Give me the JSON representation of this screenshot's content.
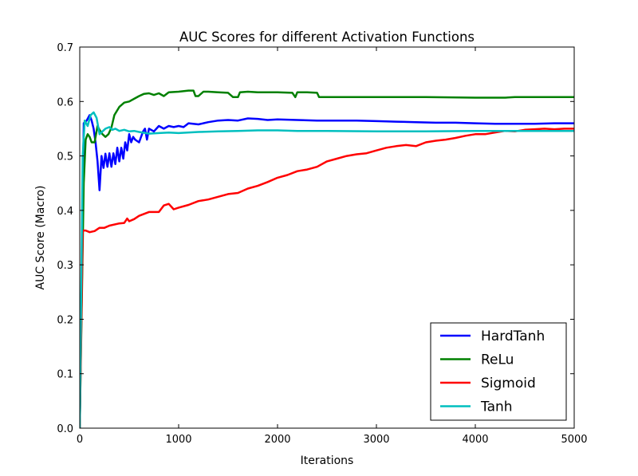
{
  "chart_data": {
    "type": "line",
    "title": "AUC Scores for different Activation Functions",
    "xlabel": "Iterations",
    "ylabel": "AUC Score (Macro)",
    "xlim": [
      0,
      5000
    ],
    "ylim": [
      0,
      0.7
    ],
    "xticks": [
      0,
      1000,
      2000,
      3000,
      4000,
      5000
    ],
    "xtick_labels": [
      "0",
      "1000",
      "2000",
      "3000",
      "4000",
      "5000"
    ],
    "yticks": [
      0,
      0.1,
      0.2,
      0.3,
      0.4,
      0.5,
      0.6,
      0.7
    ],
    "ytick_labels": [
      "0.0",
      "0.1",
      "0.2",
      "0.3",
      "0.4",
      "0.5",
      "0.6",
      "0.7"
    ],
    "grid": false,
    "legend": "lower-right",
    "series": [
      {
        "name": "HardTanh",
        "color": "#0000ff",
        "points": [
          [
            0,
            0
          ],
          [
            40,
            0.56
          ],
          [
            70,
            0.565
          ],
          [
            100,
            0.575
          ],
          [
            120,
            0.565
          ],
          [
            140,
            0.55
          ],
          [
            160,
            0.525
          ],
          [
            180,
            0.49
          ],
          [
            200,
            0.437
          ],
          [
            220,
            0.5
          ],
          [
            240,
            0.478
          ],
          [
            260,
            0.504
          ],
          [
            280,
            0.48
          ],
          [
            300,
            0.505
          ],
          [
            320,
            0.48
          ],
          [
            340,
            0.505
          ],
          [
            360,
            0.485
          ],
          [
            380,
            0.515
          ],
          [
            400,
            0.49
          ],
          [
            420,
            0.515
          ],
          [
            440,
            0.495
          ],
          [
            460,
            0.525
          ],
          [
            480,
            0.51
          ],
          [
            500,
            0.54
          ],
          [
            520,
            0.525
          ],
          [
            540,
            0.535
          ],
          [
            560,
            0.53
          ],
          [
            600,
            0.525
          ],
          [
            640,
            0.545
          ],
          [
            660,
            0.55
          ],
          [
            680,
            0.53
          ],
          [
            700,
            0.55
          ],
          [
            750,
            0.545
          ],
          [
            800,
            0.555
          ],
          [
            850,
            0.55
          ],
          [
            900,
            0.555
          ],
          [
            950,
            0.553
          ],
          [
            1000,
            0.555
          ],
          [
            1050,
            0.553
          ],
          [
            1100,
            0.56
          ],
          [
            1200,
            0.558
          ],
          [
            1300,
            0.562
          ],
          [
            1400,
            0.565
          ],
          [
            1500,
            0.566
          ],
          [
            1600,
            0.565
          ],
          [
            1700,
            0.569
          ],
          [
            1800,
            0.568
          ],
          [
            1900,
            0.566
          ],
          [
            2000,
            0.567
          ],
          [
            2200,
            0.566
          ],
          [
            2400,
            0.565
          ],
          [
            2600,
            0.565
          ],
          [
            2800,
            0.565
          ],
          [
            3000,
            0.564
          ],
          [
            3200,
            0.563
          ],
          [
            3400,
            0.562
          ],
          [
            3600,
            0.561
          ],
          [
            3800,
            0.561
          ],
          [
            4000,
            0.56
          ],
          [
            4200,
            0.559
          ],
          [
            4400,
            0.559
          ],
          [
            4600,
            0.559
          ],
          [
            4800,
            0.56
          ],
          [
            5000,
            0.56
          ]
        ]
      },
      {
        "name": "ReLu",
        "color": "#008000",
        "points": [
          [
            0,
            0
          ],
          [
            40,
            0.45
          ],
          [
            60,
            0.53
          ],
          [
            80,
            0.54
          ],
          [
            100,
            0.535
          ],
          [
            120,
            0.525
          ],
          [
            150,
            0.525
          ],
          [
            180,
            0.555
          ],
          [
            200,
            0.548
          ],
          [
            230,
            0.54
          ],
          [
            260,
            0.535
          ],
          [
            290,
            0.54
          ],
          [
            320,
            0.552
          ],
          [
            350,
            0.575
          ],
          [
            400,
            0.59
          ],
          [
            450,
            0.598
          ],
          [
            500,
            0.6
          ],
          [
            550,
            0.605
          ],
          [
            600,
            0.61
          ],
          [
            650,
            0.614
          ],
          [
            700,
            0.615
          ],
          [
            750,
            0.612
          ],
          [
            800,
            0.615
          ],
          [
            850,
            0.61
          ],
          [
            900,
            0.617
          ],
          [
            1000,
            0.618
          ],
          [
            1100,
            0.62
          ],
          [
            1150,
            0.62
          ],
          [
            1170,
            0.61
          ],
          [
            1200,
            0.61
          ],
          [
            1250,
            0.618
          ],
          [
            1300,
            0.618
          ],
          [
            1400,
            0.617
          ],
          [
            1500,
            0.616
          ],
          [
            1550,
            0.608
          ],
          [
            1600,
            0.608
          ],
          [
            1620,
            0.617
          ],
          [
            1700,
            0.618
          ],
          [
            1800,
            0.617
          ],
          [
            2000,
            0.617
          ],
          [
            2150,
            0.616
          ],
          [
            2180,
            0.608
          ],
          [
            2200,
            0.617
          ],
          [
            2300,
            0.617
          ],
          [
            2400,
            0.616
          ],
          [
            2420,
            0.608
          ],
          [
            2600,
            0.608
          ],
          [
            3000,
            0.608
          ],
          [
            3500,
            0.608
          ],
          [
            4000,
            0.607
          ],
          [
            4300,
            0.607
          ],
          [
            4400,
            0.608
          ],
          [
            4500,
            0.608
          ],
          [
            5000,
            0.608
          ]
        ]
      },
      {
        "name": "Sigmoid",
        "color": "#ff0000",
        "points": [
          [
            0,
            0
          ],
          [
            30,
            0.363
          ],
          [
            60,
            0.363
          ],
          [
            100,
            0.36
          ],
          [
            150,
            0.362
          ],
          [
            200,
            0.368
          ],
          [
            250,
            0.368
          ],
          [
            300,
            0.372
          ],
          [
            400,
            0.376
          ],
          [
            450,
            0.377
          ],
          [
            480,
            0.385
          ],
          [
            500,
            0.38
          ],
          [
            550,
            0.384
          ],
          [
            600,
            0.39
          ],
          [
            700,
            0.397
          ],
          [
            800,
            0.397
          ],
          [
            850,
            0.409
          ],
          [
            900,
            0.412
          ],
          [
            950,
            0.402
          ],
          [
            1000,
            0.405
          ],
          [
            1100,
            0.41
          ],
          [
            1200,
            0.417
          ],
          [
            1300,
            0.42
          ],
          [
            1400,
            0.425
          ],
          [
            1500,
            0.43
          ],
          [
            1600,
            0.432
          ],
          [
            1700,
            0.44
          ],
          [
            1800,
            0.445
          ],
          [
            1900,
            0.452
          ],
          [
            2000,
            0.46
          ],
          [
            2100,
            0.465
          ],
          [
            2200,
            0.472
          ],
          [
            2300,
            0.475
          ],
          [
            2400,
            0.48
          ],
          [
            2500,
            0.49
          ],
          [
            2600,
            0.495
          ],
          [
            2700,
            0.5
          ],
          [
            2800,
            0.503
          ],
          [
            2900,
            0.505
          ],
          [
            3000,
            0.51
          ],
          [
            3100,
            0.515
          ],
          [
            3200,
            0.518
          ],
          [
            3300,
            0.52
          ],
          [
            3400,
            0.518
          ],
          [
            3500,
            0.525
          ],
          [
            3600,
            0.528
          ],
          [
            3700,
            0.53
          ],
          [
            3800,
            0.533
          ],
          [
            3900,
            0.537
          ],
          [
            4000,
            0.54
          ],
          [
            4100,
            0.54
          ],
          [
            4200,
            0.543
          ],
          [
            4300,
            0.546
          ],
          [
            4400,
            0.545
          ],
          [
            4500,
            0.548
          ],
          [
            4600,
            0.549
          ],
          [
            4700,
            0.55
          ],
          [
            4800,
            0.549
          ],
          [
            4900,
            0.55
          ],
          [
            5000,
            0.55
          ]
        ]
      },
      {
        "name": "Tanh",
        "color": "#00bfbf",
        "points": [
          [
            0,
            0
          ],
          [
            30,
            0.5
          ],
          [
            50,
            0.565
          ],
          [
            80,
            0.555
          ],
          [
            110,
            0.575
          ],
          [
            140,
            0.58
          ],
          [
            170,
            0.57
          ],
          [
            200,
            0.54
          ],
          [
            230,
            0.545
          ],
          [
            260,
            0.55
          ],
          [
            300,
            0.553
          ],
          [
            330,
            0.548
          ],
          [
            360,
            0.55
          ],
          [
            400,
            0.546
          ],
          [
            450,
            0.548
          ],
          [
            500,
            0.545
          ],
          [
            550,
            0.546
          ],
          [
            600,
            0.544
          ],
          [
            700,
            0.541
          ],
          [
            800,
            0.542
          ],
          [
            900,
            0.543
          ],
          [
            1000,
            0.542
          ],
          [
            1200,
            0.544
          ],
          [
            1400,
            0.545
          ],
          [
            1600,
            0.546
          ],
          [
            1800,
            0.547
          ],
          [
            2000,
            0.547
          ],
          [
            2200,
            0.546
          ],
          [
            2500,
            0.546
          ],
          [
            3000,
            0.545
          ],
          [
            3500,
            0.545
          ],
          [
            4000,
            0.546
          ],
          [
            4500,
            0.546
          ],
          [
            5000,
            0.546
          ]
        ]
      }
    ]
  }
}
